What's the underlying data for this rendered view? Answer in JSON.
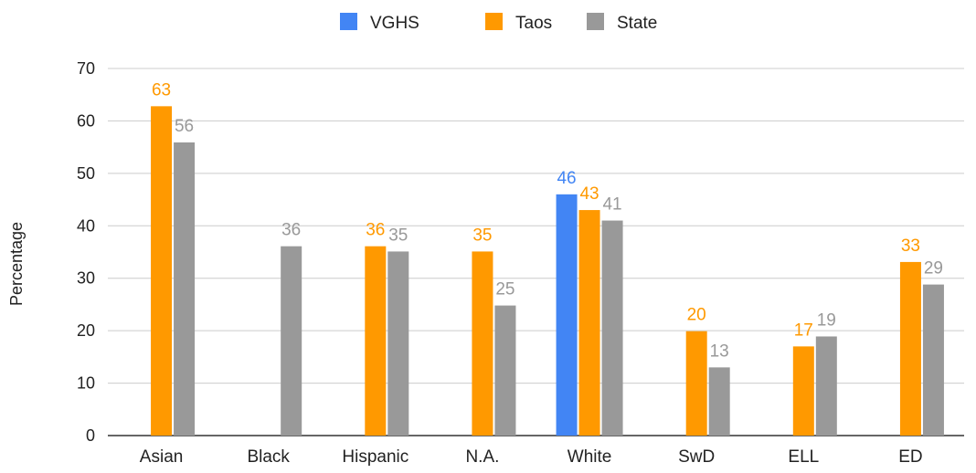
{
  "chart_data": {
    "type": "bar",
    "title": "",
    "xlabel": "",
    "ylabel": "Percentage",
    "ylim": [
      0,
      70
    ],
    "yticks": [
      0,
      10,
      20,
      30,
      40,
      50,
      60,
      70
    ],
    "grid": true,
    "legend_position": "top-center",
    "categories": [
      "Asian",
      "Black",
      "Hispanic",
      "N.A.",
      "White",
      "SwD",
      "ELL",
      "ED"
    ],
    "series": [
      {
        "name": "VGHS",
        "color": "#4285F4",
        "values": [
          null,
          null,
          null,
          null,
          46,
          null,
          null,
          null
        ],
        "labels": [
          "",
          "",
          "",
          "",
          "46",
          "",
          "",
          ""
        ]
      },
      {
        "name": "Taos",
        "color": "#FF9900",
        "values": [
          62.8,
          null,
          36.1,
          35.1,
          43,
          19.9,
          17,
          33.1
        ],
        "labels": [
          "63",
          "",
          "36",
          "35",
          "43",
          "20",
          "17",
          "33"
        ]
      },
      {
        "name": "State",
        "color": "#999999",
        "values": [
          55.9,
          36.1,
          35.1,
          24.8,
          41,
          13,
          18.9,
          28.8
        ],
        "labels": [
          "56",
          "36",
          "35",
          "25",
          "41",
          "13",
          "19",
          "29"
        ]
      }
    ]
  }
}
